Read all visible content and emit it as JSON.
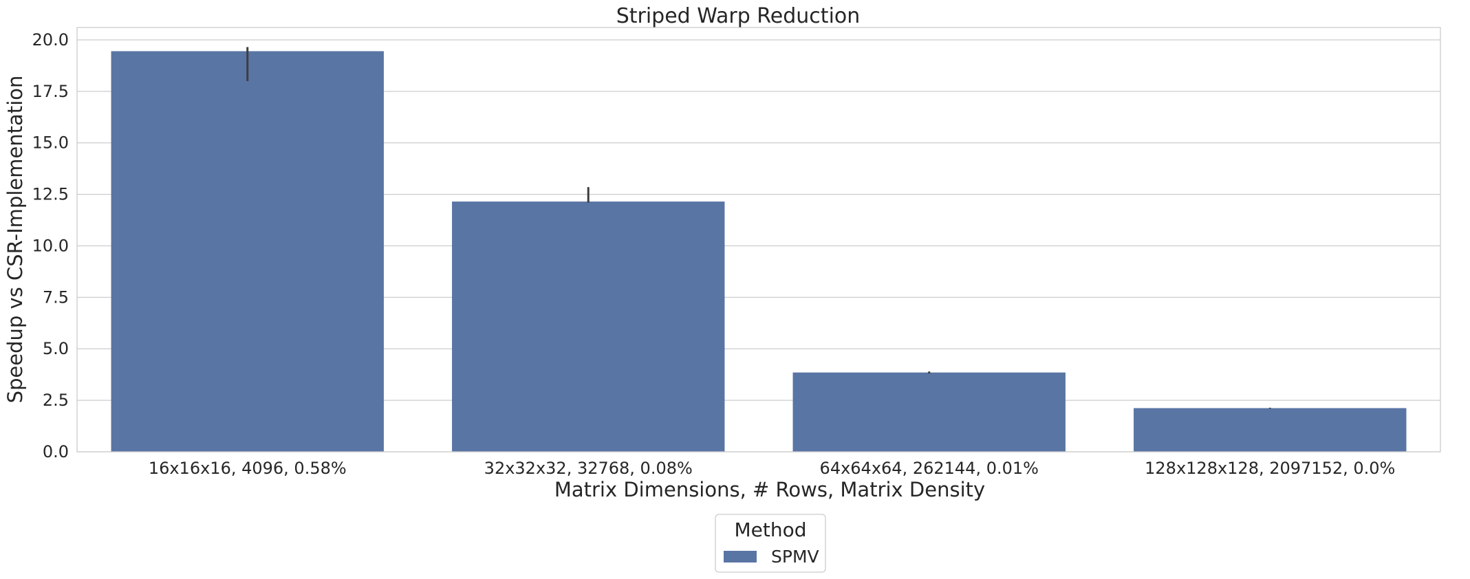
{
  "chart_data": {
    "type": "bar",
    "title": "Striped Warp Reduction",
    "xlabel": "Matrix Dimensions, # Rows, Matrix Density",
    "ylabel": "Speedup vs CSR-Implementation",
    "categories": [
      "16x16x16, 4096, 0.58%",
      "32x32x32, 32768, 0.08%",
      "64x64x64, 262144, 0.01%",
      "128x128x128, 2097152, 0.0%"
    ],
    "series": [
      {
        "name": "SPMV",
        "color": "#5975a4",
        "values": [
          19.45,
          12.15,
          3.85,
          2.12
        ],
        "error_low": [
          18.0,
          12.1,
          3.8,
          2.1
        ],
        "error_high": [
          19.65,
          12.85,
          3.9,
          2.14
        ]
      }
    ],
    "ylim": [
      0,
      20.6
    ],
    "yticks": [
      "0.0",
      "2.5",
      "5.0",
      "7.5",
      "10.0",
      "12.5",
      "15.0",
      "17.5",
      "20.0"
    ],
    "grid": true,
    "legend": {
      "title": "Method",
      "placement": "bottom-center"
    }
  }
}
